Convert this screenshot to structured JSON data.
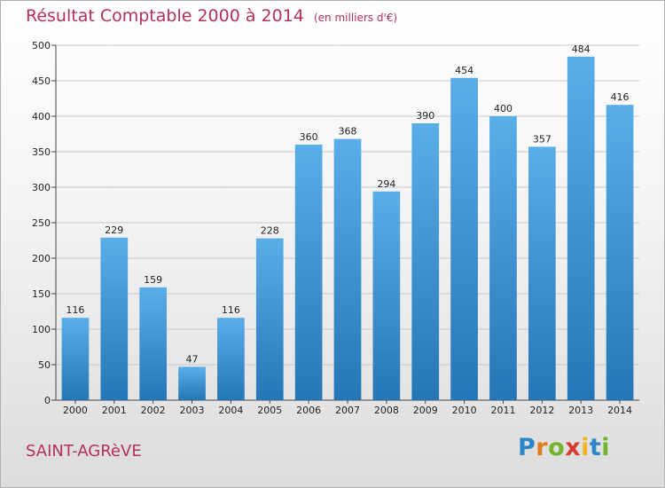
{
  "header": {
    "title": "Résultat Comptable 2000 à 2014",
    "unit": "(en milliers d'€)"
  },
  "footer": {
    "town": "SAINT-AGRèVE",
    "logo": [
      {
        "ch": "P",
        "color": "#2b86c8"
      },
      {
        "ch": "r",
        "color": "#e07b1c"
      },
      {
        "ch": "o",
        "color": "#72b52c"
      },
      {
        "ch": "x",
        "color": "#d83a2d"
      },
      {
        "ch": "i",
        "color": "#f2b51f"
      },
      {
        "ch": "t",
        "color": "#2b86c8"
      },
      {
        "ch": "i",
        "color": "#72b52c"
      }
    ]
  },
  "colors": {
    "bar_top": "#5aaee8",
    "bar_bottom": "#2576b6",
    "title": "#b5305a"
  },
  "chart_data": {
    "type": "bar",
    "title": "Résultat Comptable 2000 à 2014",
    "subtitle": "(en milliers d'€)",
    "categories": [
      "2000",
      "2001",
      "2002",
      "2003",
      "2004",
      "2005",
      "2006",
      "2007",
      "2008",
      "2009",
      "2010",
      "2011",
      "2012",
      "2013",
      "2014"
    ],
    "values": [
      116,
      229,
      159,
      47,
      116,
      228,
      360,
      368,
      294,
      390,
      454,
      400,
      357,
      484,
      416
    ],
    "ylim": [
      0,
      500
    ],
    "yticks": [
      0,
      50,
      100,
      150,
      200,
      250,
      300,
      350,
      400,
      450,
      500
    ],
    "grid": true,
    "legend": false
  }
}
